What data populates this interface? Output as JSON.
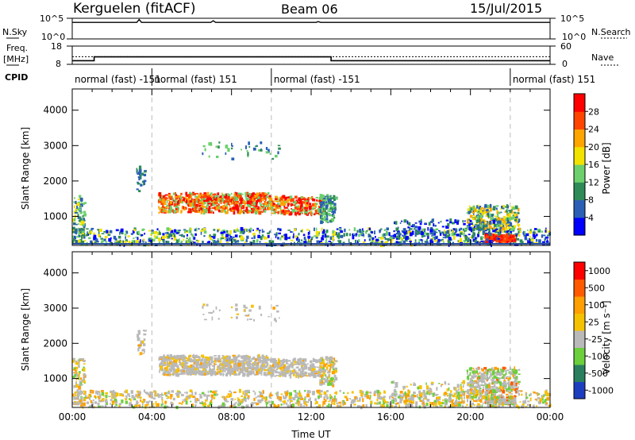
{
  "header": {
    "station": "Kerguelen (fitACF)",
    "beam": "Beam 06",
    "date": "15/Jul/2015"
  },
  "chart_data": [
    {
      "type": "line",
      "panel": "noise",
      "left_label": "N.Sky",
      "right_label": "N.Search",
      "left_ticks": [
        "10^5",
        "10^0"
      ],
      "right_ticks": [
        "10^5",
        "10^0"
      ],
      "note": "noise level essentially flat near 10^4 with small spikes"
    },
    {
      "type": "line",
      "panel": "frequency",
      "left_label_line1": "Freq.",
      "left_label_line2": "[MHz]",
      "right_label": "Nave",
      "left_ticks": [
        "18",
        "8"
      ],
      "right_ticks": [
        "60",
        "0"
      ],
      "freq_ylim": [
        8,
        18
      ],
      "nave_ylim": [
        0,
        60
      ],
      "freq_steps": [
        {
          "t": 0.0,
          "v": 10.0
        },
        {
          "t": 1.1,
          "v": 12.1
        },
        {
          "t": 13.0,
          "v": 10.0
        },
        {
          "t": 24.0,
          "v": 10.0
        }
      ],
      "nave_level": 25
    },
    {
      "type": "table",
      "panel": "cpid",
      "label": "CPID",
      "segments": [
        {
          "start": 0.0,
          "end": 4.0,
          "text": "normal (fast) -151"
        },
        {
          "start": 4.0,
          "end": 10.0,
          "text": "normal (fast) 151"
        },
        {
          "start": 10.0,
          "end": 22.0,
          "text": "normal (fast) -151"
        },
        {
          "start": 22.0,
          "end": 24.0,
          "text": "normal (fast) 151"
        }
      ]
    },
    {
      "type": "heatmap",
      "panel": "power",
      "ylabel": "Slant Range [km]",
      "ylim": [
        180,
        4600
      ],
      "yticks": [
        1000,
        2000,
        3000,
        4000
      ],
      "xlim": [
        0,
        24
      ],
      "colorbar_label": "Power [dB]",
      "colorbar_ticks": [
        "28",
        "24",
        "20",
        "16",
        "12",
        "8",
        "4"
      ],
      "colors": [
        "#0000ff",
        "#2a5fb5",
        "#2e8b57",
        "#6cd06c",
        "#f2e200",
        "#ffa500",
        "#ff4500",
        "#ff0000"
      ]
    },
    {
      "type": "heatmap",
      "panel": "velocity",
      "ylabel": "Slant Range [km]",
      "ylim": [
        180,
        4600
      ],
      "yticks": [
        1000,
        2000,
        3000,
        4000
      ],
      "xlabel": "Time UT",
      "xticks": [
        "00:00",
        "04:00",
        "08:00",
        "12:00",
        "16:00",
        "20:00",
        "00:00"
      ],
      "xlim": [
        0,
        24
      ],
      "colorbar_label": "Velocity [m s⁻¹]",
      "colorbar_ticks": [
        "1000",
        "500",
        "100",
        "25",
        "-25",
        "-100",
        "-500",
        "-1000"
      ],
      "colors": [
        "#1d3fbf",
        "#2a7f5f",
        "#6ccf3c",
        "#b9b9b9",
        "#f5c200",
        "#ff9f00",
        "#ff5a00",
        "#ff0000"
      ]
    }
  ]
}
